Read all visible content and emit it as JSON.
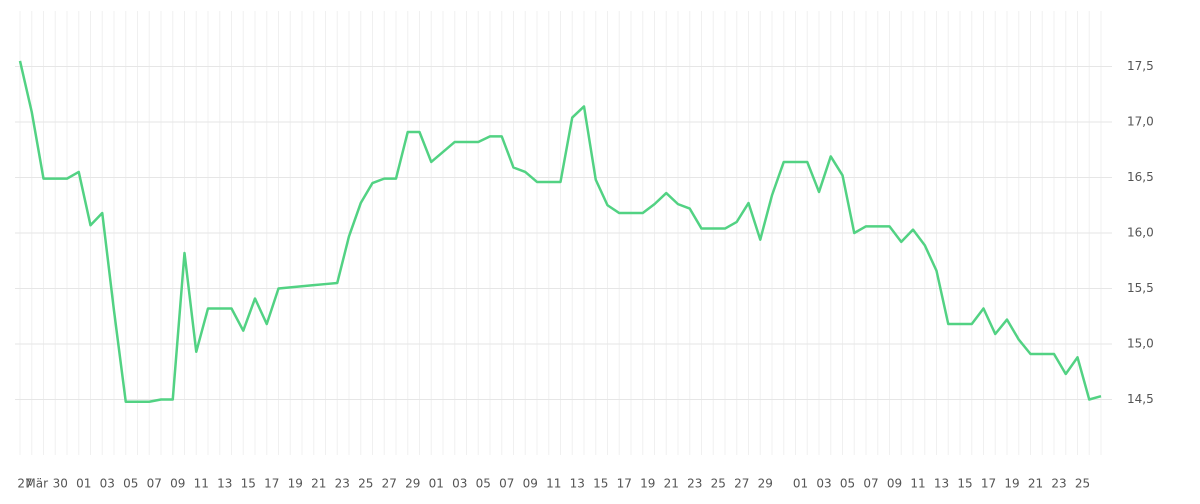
{
  "chart_data": {
    "type": "line",
    "categories": [
      "27",
      "Mär",
      null,
      "30",
      null,
      "01",
      null,
      "03",
      null,
      "05",
      null,
      "07",
      null,
      "09",
      null,
      "11",
      null,
      "13",
      null,
      "15",
      null,
      "17",
      null,
      "19",
      null,
      "21",
      null,
      "23",
      null,
      "25",
      null,
      "27",
      null,
      "29",
      null,
      "01",
      null,
      "03",
      null,
      "05",
      null,
      "07",
      null,
      "09",
      null,
      "11",
      null,
      "13",
      null,
      "15",
      null,
      "17",
      null,
      "19",
      null,
      "21",
      null,
      "23",
      null,
      "25",
      null,
      "27",
      null,
      "29",
      null,
      null,
      "01",
      null,
      "03",
      null,
      "05",
      null,
      "07",
      null,
      "09",
      null,
      "11",
      null,
      "13",
      null,
      "15",
      null,
      "17",
      null,
      "19",
      null,
      "21",
      null,
      "23",
      null,
      "25",
      null,
      null
    ],
    "series": [
      {
        "color": "#52d283",
        "values": [
          17.55,
          17.09,
          16.49,
          16.49,
          16.49,
          16.55,
          16.07,
          16.18,
          15.3,
          14.48,
          14.48,
          14.48,
          14.5,
          14.5,
          15.82,
          14.93,
          15.32,
          15.32,
          15.32,
          15.12,
          15.41,
          15.18,
          15.5,
          15.51,
          15.52,
          15.53,
          15.54,
          15.55,
          15.97,
          16.27,
          16.45,
          16.49,
          16.49,
          16.91,
          16.91,
          16.64,
          16.73,
          16.82,
          16.82,
          16.82,
          16.87,
          16.87,
          16.59,
          16.55,
          16.46,
          16.46,
          16.46,
          17.04,
          17.14,
          16.48,
          16.25,
          16.18,
          16.18,
          16.18,
          16.26,
          16.36,
          16.26,
          16.22,
          16.04,
          16.04,
          16.04,
          16.1,
          16.27,
          15.94,
          16.34,
          16.64,
          16.64,
          16.64,
          16.37,
          16.69,
          16.52,
          16.0,
          16.06,
          16.06,
          16.06,
          15.92,
          16.03,
          15.89,
          15.66,
          15.18,
          15.18,
          15.18,
          15.32,
          15.09,
          15.22,
          15.04,
          14.91,
          14.91,
          14.91,
          14.73,
          14.88,
          14.5,
          14.53
        ]
      }
    ],
    "ylim": [
      14,
      18
    ],
    "yticks": [
      {
        "value": 14.5,
        "label": "14,5"
      },
      {
        "value": 15,
        "label": "15,0"
      },
      {
        "value": 15.5,
        "label": "15,5"
      },
      {
        "value": 16,
        "label": "16,0"
      },
      {
        "value": 16.5,
        "label": "16,5"
      },
      {
        "value": 17,
        "label": "17,0"
      },
      {
        "value": 17.5,
        "label": "17,5"
      }
    ],
    "grid": true
  }
}
